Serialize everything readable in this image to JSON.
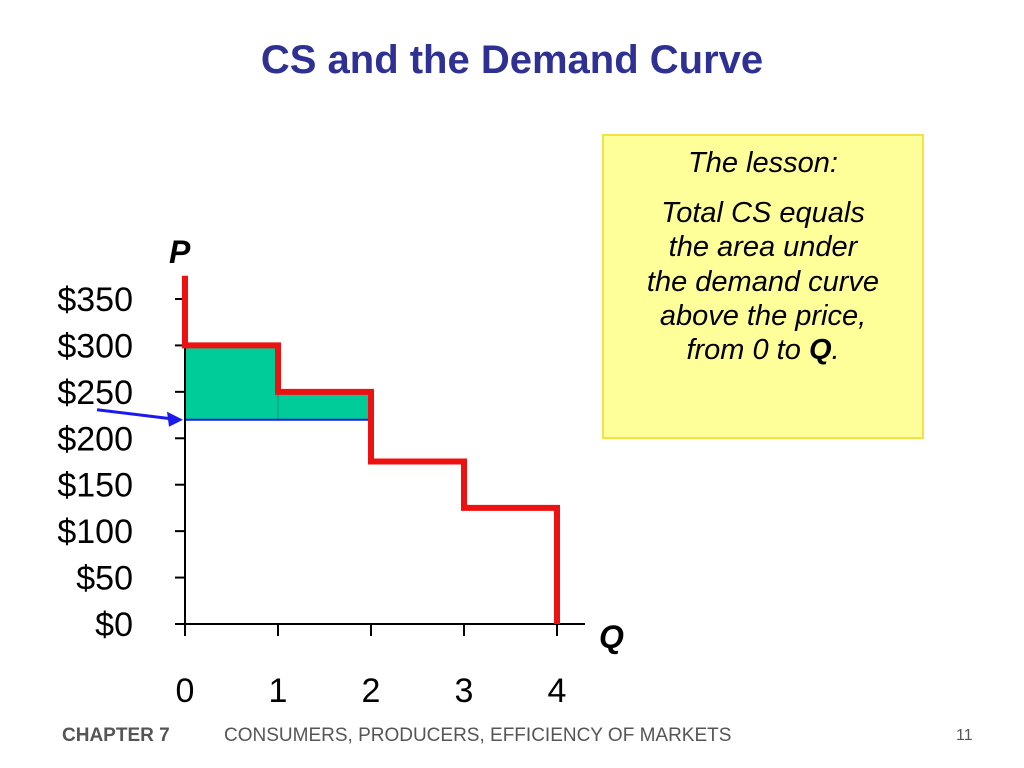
{
  "slide": {
    "title": "CS and the Demand Curve",
    "footer_chapter": "CHAPTER 7",
    "footer_subject": "CONSUMERS, PRODUCERS, EFFICIENCY OF MARKETS",
    "page_number": "11"
  },
  "lesson": {
    "heading": "The lesson:",
    "lines": [
      "Total CS equals",
      "the area under",
      "the demand curve",
      "above the price,"
    ],
    "last_line_prefix": "from 0 to ",
    "last_line_bold": "Q",
    "last_line_suffix": "."
  },
  "chart_data": {
    "type": "line",
    "xlabel": "Q",
    "ylabel": "P",
    "xlim": [
      0,
      4
    ],
    "ylim": [
      0,
      350
    ],
    "x_ticks": [
      0,
      1,
      2,
      3,
      4
    ],
    "y_ticks": [
      0,
      50,
      100,
      150,
      200,
      250,
      300,
      350
    ],
    "y_tick_labels": [
      "$0",
      "$50",
      "$100",
      "$150",
      "$200",
      "$250",
      "$300",
      "$350"
    ],
    "demand_steps": [
      {
        "q_from": 0,
        "q_to": 1,
        "price": 300
      },
      {
        "q_from": 1,
        "q_to": 2,
        "price": 250
      },
      {
        "q_from": 2,
        "q_to": 3,
        "price": 175
      },
      {
        "q_from": 3,
        "q_to": 4,
        "price": 125
      }
    ],
    "demand_top_price": 375,
    "market_price": 220,
    "consumer_surplus_q": 2,
    "colors": {
      "demand": "#ee1111",
      "consumer_surplus": "#00cc99",
      "price_line": "#1a1aee",
      "axis": "#000000"
    }
  }
}
